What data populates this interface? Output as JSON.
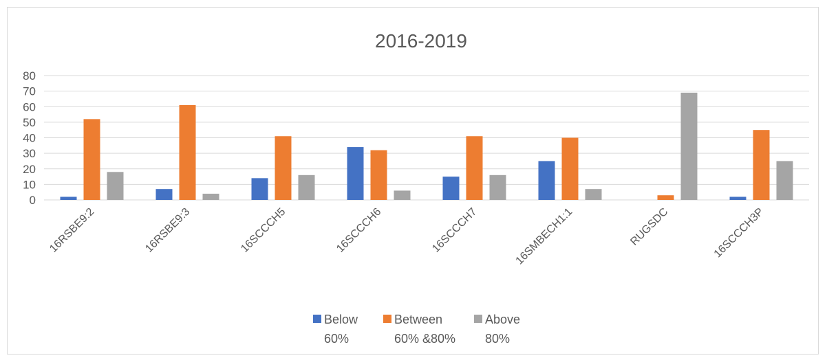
{
  "chart_data": {
    "type": "bar",
    "title": "2016-2019",
    "xlabel": "",
    "ylabel": "",
    "ylim": [
      0,
      80
    ],
    "yticks": [
      0,
      10,
      20,
      30,
      40,
      50,
      60,
      70,
      80
    ],
    "grid": true,
    "legend_position": "bottom",
    "categories": [
      "16RSBE9:2",
      "16RSBE9:3",
      "16SCCCH5",
      "16SCCCH6",
      "16SCCCH7",
      "16SMBECH1:1",
      "RUGSDC",
      "16SCCCH3P"
    ],
    "series": [
      {
        "name": "Below 60%",
        "legend_lines": [
          "Below",
          "60%"
        ],
        "color": "#4472C4",
        "values": [
          2,
          7,
          14,
          34,
          15,
          25,
          0,
          2
        ]
      },
      {
        "name": "Between 60% &80%",
        "legend_lines": [
          "Between",
          "60% &80%"
        ],
        "color": "#ED7D31",
        "values": [
          52,
          61,
          41,
          32,
          41,
          40,
          3,
          45
        ]
      },
      {
        "name": "Above 80%",
        "legend_lines": [
          "Above",
          "80%"
        ],
        "color": "#A5A5A5",
        "values": [
          18,
          4,
          16,
          6,
          16,
          7,
          69,
          25
        ]
      }
    ]
  }
}
